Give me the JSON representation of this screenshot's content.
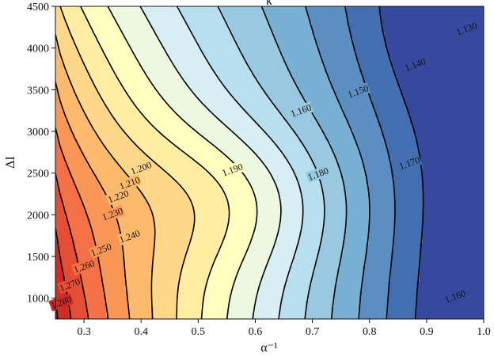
{
  "chart_data": {
    "type": "contour",
    "title": "κ",
    "xlabel": "α⁻¹",
    "ylabel": "ΔI",
    "xlim": [
      0.25,
      1.0
    ],
    "ylim": [
      750,
      4500
    ],
    "xticks": [
      "0.3",
      "0.4",
      "0.5",
      "0.6",
      "0.7",
      "0.8",
      "0.9",
      "1.0"
    ],
    "yticks": [
      "1000",
      "1500",
      "2000",
      "2500",
      "3000",
      "3500",
      "4000",
      "4500"
    ],
    "colormap": "RdYlBu_r",
    "value_range": [
      1.12,
      1.29
    ],
    "levels": [
      1.13,
      1.14,
      1.15,
      1.16,
      1.17,
      1.18,
      1.19,
      1.2,
      1.21,
      1.22,
      1.23,
      1.24,
      1.25,
      1.26,
      1.27,
      1.28
    ],
    "contour_labels": [
      {
        "text": "1.130",
        "x": 0.97,
        "y": 4230
      },
      {
        "text": "1.140",
        "x": 0.88,
        "y": 3800
      },
      {
        "text": "1.150",
        "x": 0.78,
        "y": 3480
      },
      {
        "text": "1.160",
        "x": 0.68,
        "y": 3250
      },
      {
        "text": "1.170",
        "x": 0.87,
        "y": 2620
      },
      {
        "text": "1.180",
        "x": 0.71,
        "y": 2490
      },
      {
        "text": "1.190",
        "x": 0.56,
        "y": 2540
      },
      {
        "text": "1.200",
        "x": 0.4,
        "y": 2560
      },
      {
        "text": "1.210",
        "x": 0.38,
        "y": 2380
      },
      {
        "text": "1.220",
        "x": 0.36,
        "y": 2220
      },
      {
        "text": "1.230",
        "x": 0.35,
        "y": 2010
      },
      {
        "text": "1.240",
        "x": 0.38,
        "y": 1740
      },
      {
        "text": "1.250",
        "x": 0.33,
        "y": 1580
      },
      {
        "text": "1.260",
        "x": 0.3,
        "y": 1380
      },
      {
        "text": "1.270",
        "x": 0.275,
        "y": 1160
      },
      {
        "text": "1.280",
        "x": 0.26,
        "y": 950
      },
      {
        "text": "1.160",
        "x": 0.95,
        "y": 1020
      }
    ]
  }
}
